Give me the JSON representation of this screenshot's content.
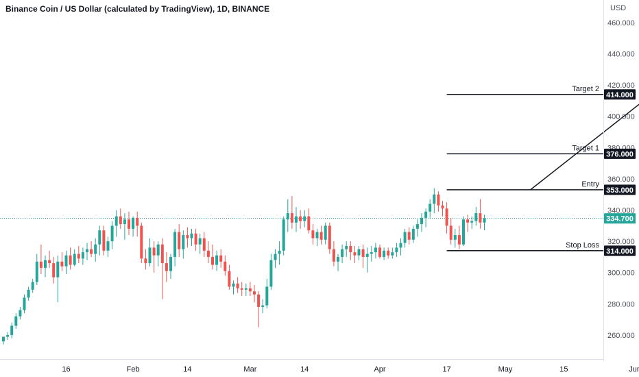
{
  "chart_data": {
    "type": "candlestick",
    "title": "Binance Coin / US Dollar (calculated by TradingView), 1D, BINANCE",
    "currency": "USD",
    "ylim": [
      240,
      464
    ],
    "y_ticks": [
      "260.000",
      "280.000",
      "300.000",
      "320.000",
      "340.000",
      "360.000",
      "380.000",
      "400.000",
      "420.000",
      "440.000",
      "460.000"
    ],
    "x_ticks": [
      {
        "label": "16",
        "day": 15
      },
      {
        "label": "Feb",
        "day": 31
      },
      {
        "label": "14",
        "day": 44
      },
      {
        "label": "Mar",
        "day": 59
      },
      {
        "label": "14",
        "day": 72
      },
      {
        "label": "Apr",
        "day": 90
      },
      {
        "label": "17",
        "day": 106
      },
      {
        "label": "May",
        "day": 120
      },
      {
        "label": "15",
        "day": 134
      },
      {
        "label": "Jun",
        "day": 151
      }
    ],
    "candles": [
      [
        256,
        259,
        254,
        259
      ],
      [
        259,
        262,
        257,
        260
      ],
      [
        260,
        268,
        258,
        266
      ],
      [
        266,
        274,
        264,
        272
      ],
      [
        272,
        278,
        270,
        276
      ],
      [
        276,
        286,
        274,
        284
      ],
      [
        284,
        291,
        282,
        289
      ],
      [
        289,
        296,
        287,
        294
      ],
      [
        294,
        312,
        292,
        307
      ],
      [
        307,
        318,
        299,
        303
      ],
      [
        303,
        311,
        297,
        308
      ],
      [
        308,
        314,
        303,
        306
      ],
      [
        306,
        310,
        293,
        297
      ],
      [
        297,
        311,
        281,
        307
      ],
      [
        307,
        313,
        301,
        304
      ],
      [
        304,
        314,
        299,
        311
      ],
      [
        311,
        316,
        302,
        305
      ],
      [
        305,
        315,
        304,
        312
      ],
      [
        312,
        317,
        306,
        309
      ],
      [
        309,
        316,
        305,
        313
      ],
      [
        313,
        319,
        308,
        315
      ],
      [
        315,
        320,
        310,
        312
      ],
      [
        312,
        322,
        307,
        318
      ],
      [
        318,
        330,
        311,
        327
      ],
      [
        327,
        330,
        311,
        314
      ],
      [
        314,
        323,
        310,
        320
      ],
      [
        320,
        333,
        315,
        330
      ],
      [
        330,
        340,
        323,
        336
      ],
      [
        336,
        341,
        328,
        331
      ],
      [
        331,
        338,
        321,
        334
      ],
      [
        334,
        339,
        324,
        328
      ],
      [
        328,
        336,
        323,
        335
      ],
      [
        335,
        339,
        323,
        330
      ],
      [
        330,
        332,
        306,
        309
      ],
      [
        309,
        315,
        302,
        306
      ],
      [
        306,
        322,
        304,
        316
      ],
      [
        316,
        320,
        300,
        311
      ],
      [
        311,
        320,
        304,
        318
      ],
      [
        318,
        322,
        283,
        306
      ],
      [
        306,
        313,
        294,
        301
      ],
      [
        301,
        312,
        296,
        310
      ],
      [
        310,
        328,
        304,
        326
      ],
      [
        326,
        331,
        310,
        315
      ],
      [
        315,
        327,
        309,
        324
      ],
      [
        324,
        329,
        316,
        322
      ],
      [
        322,
        328,
        317,
        325
      ],
      [
        325,
        328,
        314,
        318
      ],
      [
        318,
        325,
        312,
        322
      ],
      [
        322,
        326,
        310,
        314
      ],
      [
        314,
        320,
        306,
        310
      ],
      [
        310,
        318,
        302,
        305
      ],
      [
        305,
        314,
        301,
        311
      ],
      [
        311,
        315,
        303,
        307
      ],
      [
        307,
        311,
        298,
        301
      ],
      [
        301,
        305,
        289,
        291
      ],
      [
        291,
        295,
        286,
        293
      ],
      [
        293,
        297,
        287,
        290
      ],
      [
        290,
        294,
        285,
        289
      ],
      [
        289,
        293,
        285,
        290
      ],
      [
        290,
        294,
        285,
        288
      ],
      [
        288,
        292,
        281,
        286
      ],
      [
        286,
        288,
        265,
        278
      ],
      [
        278,
        283,
        274,
        279
      ],
      [
        279,
        296,
        277,
        291
      ],
      [
        291,
        312,
        289,
        308
      ],
      [
        308,
        315,
        303,
        312
      ],
      [
        312,
        320,
        305,
        314
      ],
      [
        314,
        336,
        311,
        334
      ],
      [
        334,
        347,
        326,
        338
      ],
      [
        338,
        349,
        328,
        332
      ],
      [
        332,
        342,
        326,
        336
      ],
      [
        336,
        340,
        328,
        333
      ],
      [
        333,
        340,
        329,
        336
      ],
      [
        336,
        341,
        325,
        327
      ],
      [
        327,
        331,
        318,
        322
      ],
      [
        322,
        328,
        317,
        326
      ],
      [
        326,
        330,
        318,
        321
      ],
      [
        321,
        332,
        318,
        330
      ],
      [
        330,
        332,
        312,
        315
      ],
      [
        315,
        320,
        304,
        307
      ],
      [
        307,
        312,
        301,
        310
      ],
      [
        310,
        318,
        306,
        315
      ],
      [
        315,
        320,
        310,
        317
      ],
      [
        317,
        320,
        308,
        313
      ],
      [
        313,
        317,
        306,
        311
      ],
      [
        311,
        317,
        308,
        315
      ],
      [
        315,
        318,
        303,
        310
      ],
      [
        310,
        316,
        300,
        312
      ],
      [
        312,
        317,
        307,
        313
      ],
      [
        313,
        319,
        309,
        316
      ],
      [
        316,
        318,
        309,
        310
      ],
      [
        310,
        316,
        308,
        314
      ],
      [
        314,
        316,
        309,
        311
      ],
      [
        311,
        316,
        309,
        313
      ],
      [
        313,
        319,
        310,
        316
      ],
      [
        316,
        322,
        311,
        319
      ],
      [
        319,
        328,
        316,
        326
      ],
      [
        326,
        329,
        318,
        321
      ],
      [
        321,
        330,
        319,
        328
      ],
      [
        328,
        334,
        323,
        331
      ],
      [
        331,
        338,
        326,
        335
      ],
      [
        335,
        341,
        329,
        339
      ],
      [
        339,
        347,
        335,
        344
      ],
      [
        344,
        354,
        338,
        350
      ],
      [
        350,
        352,
        339,
        343
      ],
      [
        343,
        346,
        336,
        341
      ],
      [
        341,
        345,
        325,
        330
      ],
      [
        330,
        335,
        318,
        321
      ],
      [
        321,
        328,
        316,
        324
      ],
      [
        324,
        330,
        315,
        318
      ],
      [
        318,
        336,
        317,
        334
      ],
      [
        334,
        337,
        326,
        332
      ],
      [
        332,
        336,
        328,
        333
      ],
      [
        333,
        342,
        330,
        338
      ],
      [
        338,
        347,
        328,
        332
      ],
      [
        332,
        337,
        327,
        334.7
      ]
    ],
    "levels": [
      {
        "name": "Target 2",
        "value": 414,
        "tag": "414.000"
      },
      {
        "name": "Target 1",
        "value": 376,
        "tag": "376.000"
      },
      {
        "name": "Entry",
        "value": 353,
        "tag": "353.000"
      },
      {
        "name": "Stop Loss",
        "value": 314,
        "tag": "314.000"
      }
    ],
    "last_price": {
      "value": 334.7,
      "tag": "334.700"
    },
    "projection": {
      "from": {
        "day": 126,
        "value": 353
      },
      "to": {
        "day": 155,
        "value": 414
      }
    },
    "level_start_day": 106,
    "colors": {
      "up": "#26a69a",
      "down": "#ef5350",
      "line": "#131722",
      "last": "#26a69a",
      "tag_bg": "#131722"
    }
  }
}
